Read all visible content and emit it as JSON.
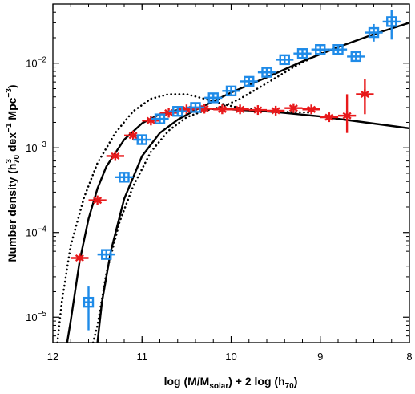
{
  "chart_data": {
    "type": "scatter",
    "x_axis": {
      "reversed": true,
      "range": [
        12,
        8
      ],
      "ticks": [
        {
          "value": 12,
          "label": "12"
        },
        {
          "value": 11,
          "label": "11"
        },
        {
          "value": 10,
          "label": "10"
        },
        {
          "value": 9,
          "label": "9"
        },
        {
          "value": 8,
          "label": "8"
        }
      ],
      "label_parts": [
        {
          "text": "log (M/M",
          "sub": false
        },
        {
          "text": "solar",
          "sub": true
        },
        {
          "text": ") + 2 log (h",
          "sub": false
        },
        {
          "text": "70",
          "sub": true
        },
        {
          "text": ")",
          "sub": false
        }
      ]
    },
    "y_axis": {
      "scale": "log",
      "range": [
        5e-06,
        0.05
      ],
      "ticks": [
        {
          "value": 1e-05,
          "base": "10",
          "exp": "−5"
        },
        {
          "value": 0.0001,
          "base": "10",
          "exp": "−4"
        },
        {
          "value": 0.001,
          "base": "10",
          "exp": "−3"
        },
        {
          "value": 0.01,
          "base": "10",
          "exp": "−2"
        }
      ],
      "label_parts": [
        {
          "text": "Number density (h",
          "shift": "none"
        },
        {
          "text": "3",
          "shift": "sup"
        },
        {
          "text": "70",
          "shift": "sub"
        },
        {
          "text": " dex",
          "shift": "none"
        },
        {
          "text": "−1",
          "shift": "sup"
        },
        {
          "text": " Mpc",
          "shift": "none"
        },
        {
          "text": "−3",
          "shift": "sup"
        },
        {
          "text": ")",
          "shift": "none"
        }
      ]
    },
    "grid": false,
    "series": [
      {
        "marker": "asterisk",
        "color": "#e8191b",
        "points": [
          {
            "x": 11.7,
            "y": 5e-05,
            "xerr": 0.1
          },
          {
            "x": 11.5,
            "y": 0.00024,
            "xerr": 0.1
          },
          {
            "x": 11.3,
            "y": 0.0008,
            "xerr": 0.1
          },
          {
            "x": 11.1,
            "y": 0.0014,
            "xerr": 0.1
          },
          {
            "x": 10.9,
            "y": 0.0021,
            "xerr": 0.1
          },
          {
            "x": 10.7,
            "y": 0.0026,
            "xerr": 0.1
          },
          {
            "x": 10.5,
            "y": 0.00285,
            "xerr": 0.1
          },
          {
            "x": 10.3,
            "y": 0.0029,
            "xerr": 0.1
          },
          {
            "x": 10.1,
            "y": 0.00285,
            "xerr": 0.1
          },
          {
            "x": 9.9,
            "y": 0.00285,
            "xerr": 0.1
          },
          {
            "x": 9.7,
            "y": 0.0028,
            "xerr": 0.1
          },
          {
            "x": 9.5,
            "y": 0.00275,
            "xerr": 0.1
          },
          {
            "x": 9.3,
            "y": 0.00295,
            "xerr": 0.1
          },
          {
            "x": 9.1,
            "y": 0.00285,
            "xerr": 0.1
          },
          {
            "x": 8.9,
            "y": 0.0023,
            "xerr": 0.1
          },
          {
            "x": 8.7,
            "y": 0.0024,
            "xerr": 0.1,
            "ylow": 0.0015,
            "yhigh": 0.0043
          },
          {
            "x": 8.5,
            "y": 0.0043,
            "xerr": 0.1,
            "ylow": 0.0025,
            "yhigh": 0.0065
          }
        ]
      },
      {
        "marker": "boxed-cross",
        "color": "#1f8be8",
        "points": [
          {
            "x": 11.6,
            "y": 1.5e-05,
            "ylow": 7e-06,
            "yhigh": 2.3e-05
          },
          {
            "x": 11.4,
            "y": 5.5e-05,
            "xerr": 0.1
          },
          {
            "x": 11.2,
            "y": 0.00045,
            "xerr": 0.1
          },
          {
            "x": 11.0,
            "y": 0.00125,
            "xerr": 0.1
          },
          {
            "x": 10.8,
            "y": 0.0022,
            "xerr": 0.1
          },
          {
            "x": 10.6,
            "y": 0.0027,
            "xerr": 0.1
          },
          {
            "x": 10.4,
            "y": 0.003,
            "xerr": 0.1
          },
          {
            "x": 10.2,
            "y": 0.0039,
            "xerr": 0.1
          },
          {
            "x": 10.0,
            "y": 0.0047,
            "xerr": 0.1
          },
          {
            "x": 9.8,
            "y": 0.0061,
            "xerr": 0.1
          },
          {
            "x": 9.6,
            "y": 0.0078,
            "xerr": 0.1
          },
          {
            "x": 9.4,
            "y": 0.011,
            "xerr": 0.1
          },
          {
            "x": 9.2,
            "y": 0.013,
            "xerr": 0.1
          },
          {
            "x": 9.0,
            "y": 0.0145,
            "xerr": 0.1
          },
          {
            "x": 8.8,
            "y": 0.0145,
            "xerr": 0.1
          },
          {
            "x": 8.6,
            "y": 0.012,
            "xerr": 0.1
          },
          {
            "x": 8.4,
            "y": 0.023,
            "xerr": 0.1,
            "ylow": 0.018,
            "yhigh": 0.029
          },
          {
            "x": 8.2,
            "y": 0.031,
            "xerr": 0.1,
            "ylow": 0.019,
            "yhigh": 0.042
          }
        ]
      }
    ],
    "curves": [
      {
        "style": "solid",
        "points": [
          [
            11.84,
            5e-06
          ],
          [
            11.8,
            9e-06
          ],
          [
            11.7,
            4.6e-05
          ],
          [
            11.6,
            0.000145
          ],
          [
            11.5,
            0.00033
          ],
          [
            11.4,
            0.0006
          ],
          [
            11.2,
            0.00125
          ],
          [
            11.0,
            0.00195
          ],
          [
            10.8,
            0.0025
          ],
          [
            10.6,
            0.0028
          ],
          [
            10.4,
            0.0029
          ],
          [
            10.2,
            0.0029
          ],
          [
            10.0,
            0.00285
          ],
          [
            9.5,
            0.00265
          ],
          [
            9.0,
            0.00235
          ],
          [
            8.5,
            0.002
          ],
          [
            8.0,
            0.0017
          ]
        ]
      },
      {
        "style": "solid",
        "points": [
          [
            11.5,
            5e-06
          ],
          [
            11.45,
            1.5e-05
          ],
          [
            11.35,
            6e-05
          ],
          [
            11.2,
            0.00025
          ],
          [
            11.0,
            0.0008
          ],
          [
            10.8,
            0.0015
          ],
          [
            10.6,
            0.00215
          ],
          [
            10.4,
            0.0028
          ],
          [
            10.2,
            0.00355
          ],
          [
            10.0,
            0.0045
          ],
          [
            9.6,
            0.0068
          ],
          [
            9.2,
            0.0105
          ],
          [
            8.8,
            0.0155
          ],
          [
            8.4,
            0.022
          ],
          [
            8.0,
            0.03
          ]
        ]
      },
      {
        "style": "dotted",
        "points": [
          [
            11.95,
            5e-06
          ],
          [
            11.9,
            1.5e-05
          ],
          [
            11.8,
            7e-05
          ],
          [
            11.65,
            0.00026
          ],
          [
            11.5,
            0.00066
          ],
          [
            11.3,
            0.0015
          ],
          [
            11.1,
            0.0027
          ],
          [
            10.9,
            0.0038
          ],
          [
            10.7,
            0.0043
          ],
          [
            10.5,
            0.0043
          ],
          [
            10.3,
            0.0038
          ],
          [
            10.1,
            0.0033
          ],
          [
            9.9,
            0.00295
          ],
          [
            9.6,
            0.0027
          ],
          [
            9.3,
            0.00265
          ],
          [
            9.1,
            0.0026
          ]
        ]
      },
      {
        "style": "dotted",
        "points": [
          [
            11.55,
            5e-06
          ],
          [
            11.5,
            8e-06
          ],
          [
            11.4,
            3.3e-05
          ],
          [
            11.25,
            0.000135
          ],
          [
            11.1,
            0.00035
          ],
          [
            10.9,
            0.0009
          ],
          [
            10.7,
            0.0016
          ],
          [
            10.5,
            0.0023
          ],
          [
            10.3,
            0.00275
          ],
          [
            10.1,
            0.00305
          ],
          [
            9.9,
            0.0038
          ],
          [
            9.6,
            0.0058
          ],
          [
            9.3,
            0.009
          ],
          [
            9.0,
            0.013
          ],
          [
            8.9,
            0.0145
          ]
        ]
      }
    ]
  }
}
